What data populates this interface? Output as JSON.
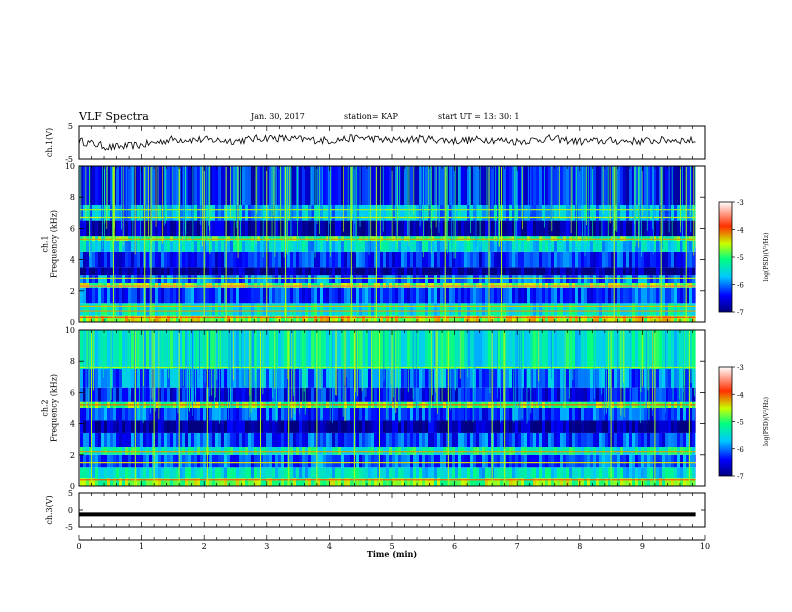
{
  "header": {
    "title": "VLF Spectra",
    "date": "Jan. 30, 2017",
    "station": "station= KAP",
    "start": "start  UT =   13: 30: 1"
  },
  "chart_data": [
    {
      "type": "line",
      "panel": "ch1-waveform",
      "ylabel": "ch.1(V)",
      "ylim": [
        -5,
        5
      ],
      "yticks": [
        {
          "value": 5,
          "label": "5"
        },
        {
          "value": -5,
          "label": "-5"
        }
      ],
      "xlim": [
        0,
        10
      ],
      "style": "noisy black trace fluctuating roughly between -2 and 3 V",
      "series": [
        {
          "x": [
            0,
            0.5,
            1,
            1.5,
            2,
            2.5,
            3,
            3.5,
            4,
            4.5,
            5,
            5.5,
            6,
            6.5,
            7,
            7.5,
            8,
            8.5,
            9,
            9.5,
            9.85
          ],
          "values": [
            0.5,
            -1.5,
            -0.8,
            1.0,
            0.8,
            0.5,
            1.5,
            1.0,
            0.6,
            1.5,
            0.6,
            1.2,
            0.5,
            1.0,
            0.3,
            1.2,
            0.3,
            0.5,
            0.4,
            0.8,
            0.5
          ]
        }
      ]
    },
    {
      "type": "heatmap",
      "panel": "ch1-spectrogram",
      "ylabel": "ch.1\nFrequency (kHz)",
      "ylim": [
        0,
        10
      ],
      "yticks": [
        0,
        2,
        4,
        6,
        8,
        10
      ],
      "xlim": [
        0,
        10
      ],
      "colorbar": {
        "label": "log(PSD)(V²/Hz)",
        "range": [
          -7,
          -3
        ],
        "ticks": [
          -3,
          -4,
          -5,
          -6,
          -7
        ]
      },
      "bands_khz": [
        {
          "from": 0.0,
          "to": 0.4,
          "level": -4.6
        },
        {
          "from": 0.4,
          "to": 1.2,
          "level": -5.4
        },
        {
          "from": 1.2,
          "to": 2.2,
          "level": -6.2
        },
        {
          "from": 2.2,
          "to": 2.5,
          "level": -4.8
        },
        {
          "from": 2.5,
          "to": 3.0,
          "level": -6.0
        },
        {
          "from": 3.0,
          "to": 3.5,
          "level": -6.9
        },
        {
          "from": 3.5,
          "to": 4.5,
          "level": -6.3
        },
        {
          "from": 4.5,
          "to": 5.2,
          "level": -5.6
        },
        {
          "from": 5.2,
          "to": 5.5,
          "level": -5.0
        },
        {
          "from": 5.5,
          "to": 6.5,
          "level": -6.8
        },
        {
          "from": 6.5,
          "to": 7.5,
          "level": -5.8
        },
        {
          "from": 7.5,
          "to": 10.0,
          "level": -6.4
        }
      ],
      "lines_khz": [
        {
          "f": 0.3,
          "level": -3.8
        },
        {
          "f": 0.7,
          "level": -4.2
        },
        {
          "f": 1.0,
          "level": -4.3
        },
        {
          "f": 2.3,
          "level": -3.6
        },
        {
          "f": 2.8,
          "level": -4.5
        },
        {
          "f": 5.3,
          "level": -4.2
        },
        {
          "f": 6.7,
          "level": -4.5
        },
        {
          "f": 7.2,
          "level": -4.6
        }
      ],
      "spikes_min": [
        0.55,
        1.05,
        1.15,
        1.6,
        2.0,
        2.35,
        3.0,
        3.3,
        4.35,
        4.75,
        5.85,
        6.55,
        6.75,
        8.55,
        9.3,
        9.7
      ]
    },
    {
      "type": "heatmap",
      "panel": "ch2-spectrogram",
      "ylabel": "ch.2\nFrequency (kHz)",
      "ylim": [
        0,
        10
      ],
      "yticks": [
        0,
        2,
        4,
        6,
        8,
        10
      ],
      "xlim": [
        0,
        10
      ],
      "colorbar": {
        "label": "log(PSD)(V²/Hz)",
        "range": [
          -7,
          -3
        ],
        "ticks": [
          -3,
          -4,
          -5,
          -6,
          -7
        ]
      },
      "bands_khz": [
        {
          "from": 0.0,
          "to": 0.5,
          "level": -4.8
        },
        {
          "from": 0.5,
          "to": 1.2,
          "level": -5.5
        },
        {
          "from": 1.2,
          "to": 2.0,
          "level": -6.1
        },
        {
          "from": 2.0,
          "to": 2.5,
          "level": -5.3
        },
        {
          "from": 2.5,
          "to": 3.4,
          "level": -6.2
        },
        {
          "from": 3.4,
          "to": 4.2,
          "level": -6.8
        },
        {
          "from": 4.2,
          "to": 5.0,
          "level": -6.2
        },
        {
          "from": 5.0,
          "to": 5.4,
          "level": -4.9
        },
        {
          "from": 5.4,
          "to": 6.3,
          "level": -6.4
        },
        {
          "from": 6.3,
          "to": 7.5,
          "level": -6.0
        },
        {
          "from": 7.5,
          "to": 10.0,
          "level": -5.4
        }
      ],
      "lines_khz": [
        {
          "f": 0.4,
          "level": -4.0
        },
        {
          "f": 1.5,
          "level": -4.4
        },
        {
          "f": 2.2,
          "level": -4.2
        },
        {
          "f": 5.2,
          "level": -4.0
        },
        {
          "f": 7.6,
          "level": -4.6
        }
      ],
      "spikes_min": [
        0.2,
        0.9,
        1.2,
        1.6,
        2.05,
        2.9,
        3.35,
        3.8,
        4.4,
        4.8,
        5.9,
        6.6,
        6.8,
        8.5,
        9.2,
        9.75
      ]
    },
    {
      "type": "line",
      "panel": "ch3-waveform",
      "ylabel": "ch.3(V)",
      "ylim": [
        -5,
        5
      ],
      "yticks": [
        {
          "value": 5,
          "label": "5"
        },
        {
          "value": 0,
          "label": "0"
        },
        {
          "value": -5,
          "label": "-5"
        }
      ],
      "xlim": [
        0,
        10
      ],
      "series": [
        {
          "x": [
            0,
            9.85
          ],
          "values": [
            -1.3,
            -1.3
          ]
        }
      ],
      "xlabel": "Time  (min)",
      "xticks": [
        0,
        1,
        2,
        3,
        4,
        5,
        6,
        7,
        8,
        9,
        10
      ]
    }
  ]
}
